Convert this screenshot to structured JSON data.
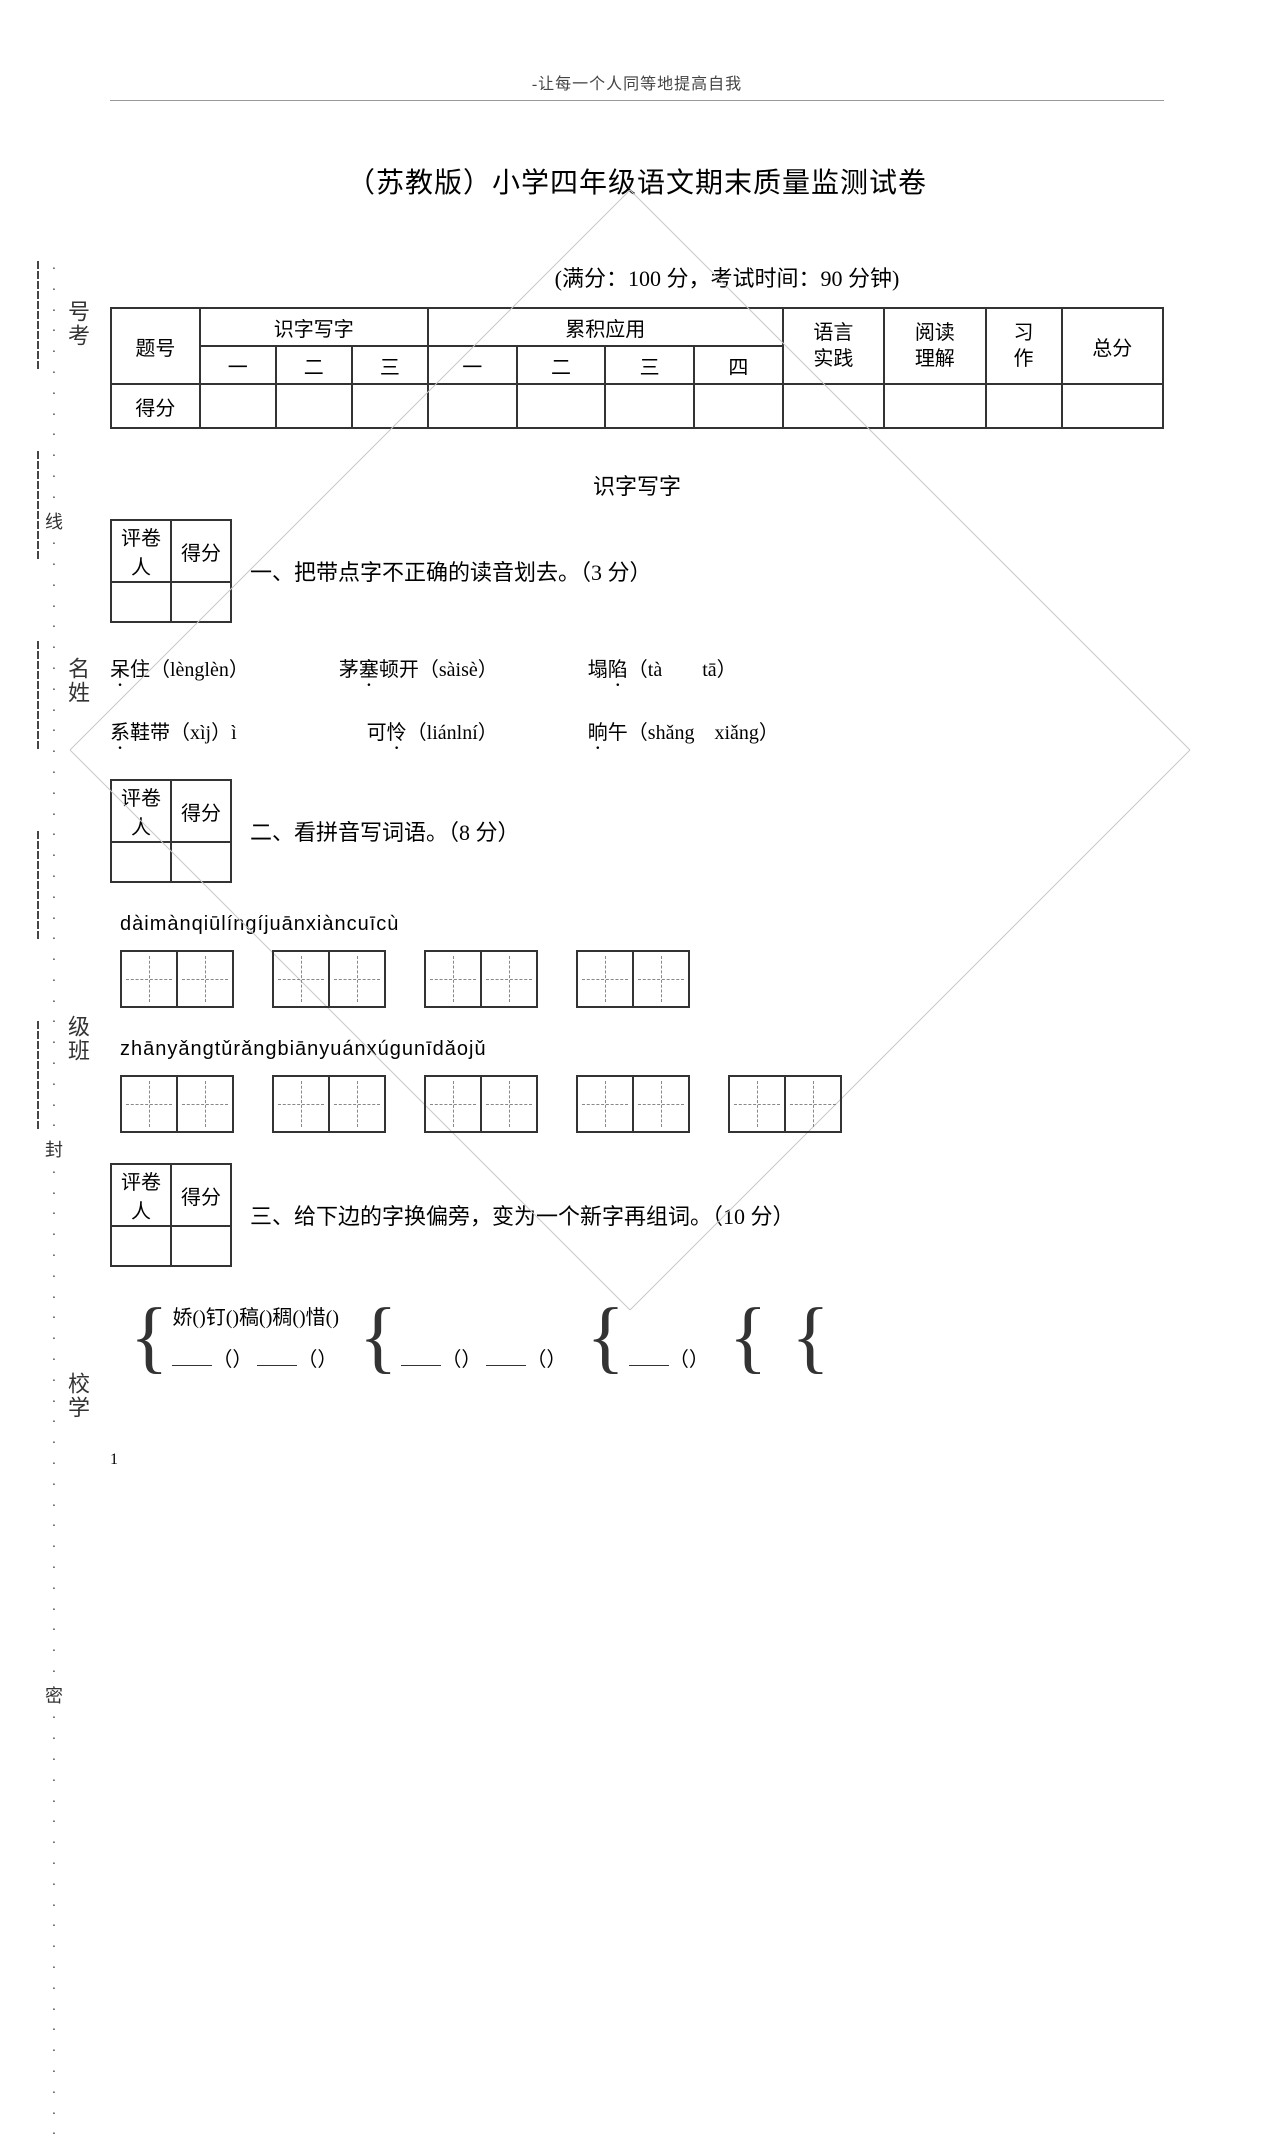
{
  "header": "-让每一个人同等地提高自我",
  "title": "（苏教版）小学四年级语文期末质量监测试卷",
  "examInfo": "(满分：100 分，考试时间：90 分钟)",
  "sideLabels": [
    "号考",
    "名姓",
    "级班",
    "校学"
  ],
  "sideMarkers": [
    "线",
    "封",
    "密"
  ],
  "scoreTable": {
    "r1": {
      "c0": "题号",
      "c1": "识字写字",
      "c2": "累积应用",
      "c3": "语言",
      "c4": "阅读",
      "c5": "习",
      "c6": "总分"
    },
    "r2": {
      "a": "一",
      "b": "二",
      "c": "三",
      "d": "一",
      "e": "二",
      "f": "三",
      "g": "四",
      "h": "实践",
      "i": "理解",
      "j": "作"
    },
    "r3": {
      "label": "得分"
    }
  },
  "sectionTitle": "识字写字",
  "graderBox": {
    "a": "评卷人",
    "b": "得分"
  },
  "q1": {
    "text": "一、把带点字不正确的读音划去。（3 分）",
    "items": {
      "a": {
        "pre": "呆",
        "dot": "住",
        "py": "（lènglèn）"
      },
      "b": {
        "pre": "茅",
        "dot": "塞",
        "post": "顿开",
        "py": "（sàisè）"
      },
      "c": {
        "pre": "塌",
        "dot": "陷",
        "py": "（tà　　tā）"
      },
      "d": {
        "pre": "",
        "dot": "系",
        "post": "鞋带",
        "py": "（xìj）ì"
      },
      "e": {
        "pre": "可",
        "dot": "怜",
        "py": "（liánlní）"
      },
      "f": {
        "pre": "",
        "dot": "晌",
        "post": "午",
        "py": "（shǎng　xiǎng）"
      }
    }
  },
  "q2": {
    "text": "二、看拼音写词语。（8 分）",
    "line1": "dàimànqiūlíngíjuānxiàncuīcù",
    "line2": "zhānyǎngtǔrǎngbiānyuánxúgunīdǎojǔ",
    "row1Groups": [
      2,
      2,
      2,
      2
    ],
    "row2Groups": [
      2,
      2,
      2,
      2,
      2
    ]
  },
  "q3": {
    "text": "三、给下边的字换偏旁，变为一个新字再组词。（10 分）",
    "chars": "娇()钉()稿()稠()惜()"
  },
  "pageNum": "1"
}
